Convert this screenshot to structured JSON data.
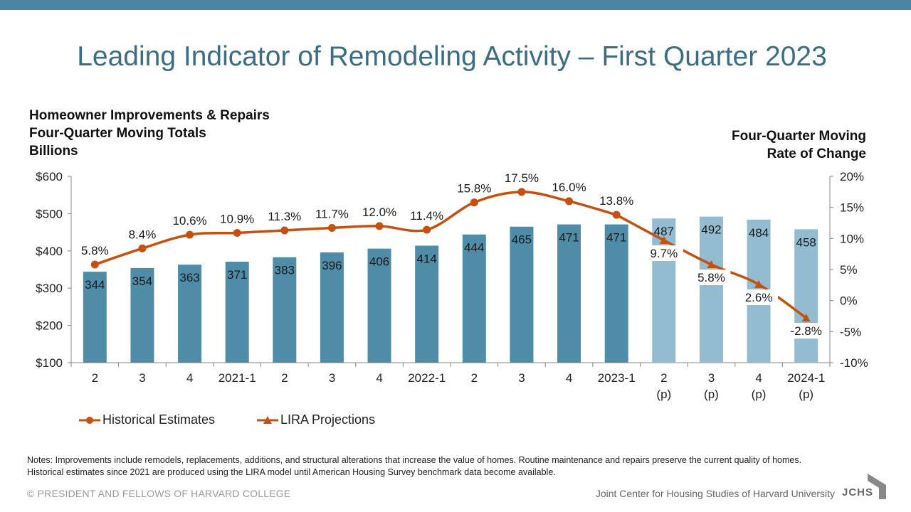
{
  "title": "Leading Indicator of Remodeling Activity – First Quarter 2023",
  "left_axis_title": [
    "Homeowner Improvements & Repairs",
    "Four-Quarter Moving Totals",
    "Billions"
  ],
  "right_axis_title": [
    "Four-Quarter Moving",
    "Rate of Change"
  ],
  "legend": {
    "historical": "Historical Estimates",
    "projections": "LIRA Projections"
  },
  "notes": "Notes: Improvements include remodels, replacements, additions, and structural alterations that increase the value of homes. Routine maintenance and repairs preserve the current quality of homes. Historical estimates since 2021 are produced using the LIRA model until American Housing Survey benchmark data become available.",
  "footer": {
    "copyright": "© PRESIDENT AND FELLOWS OF HARVARD COLLEGE",
    "org": "Joint Center for Housing Studies of Harvard University",
    "logo": "JCHS"
  },
  "colors": {
    "header_bar": "#4a86a3",
    "title": "#3a6e86",
    "bar_historical": "#4e8ca8",
    "bar_projected": "#94bcd0",
    "line": "#c5500f"
  },
  "chart_data": {
    "type": "bar",
    "categories": [
      [
        "2"
      ],
      [
        "3"
      ],
      [
        "4"
      ],
      [
        "2021-1"
      ],
      [
        "2"
      ],
      [
        "3"
      ],
      [
        "4"
      ],
      [
        "2022-1"
      ],
      [
        "2"
      ],
      [
        "3"
      ],
      [
        "4"
      ],
      [
        "2023-1"
      ],
      [
        "2",
        "(p)"
      ],
      [
        "3",
        "(p)"
      ],
      [
        "4",
        "(p)"
      ],
      [
        "2024-1",
        "(p)"
      ]
    ],
    "bars": {
      "values": [
        344,
        354,
        363,
        371,
        383,
        396,
        406,
        414,
        444,
        465,
        471,
        471,
        487,
        492,
        484,
        458
      ],
      "projected": [
        false,
        false,
        false,
        false,
        false,
        false,
        false,
        false,
        false,
        false,
        false,
        false,
        true,
        true,
        true,
        true
      ]
    },
    "series": [
      {
        "name": "Historical Estimates",
        "marker": "circle",
        "axis": "right",
        "values": [
          5.8,
          8.4,
          10.6,
          10.9,
          11.3,
          11.7,
          12.0,
          11.4,
          15.8,
          17.5,
          16.0,
          13.8,
          null,
          null,
          null,
          null
        ],
        "labels": [
          "5.8%",
          "8.4%",
          "10.6%",
          "10.9%",
          "11.3%",
          "11.7%",
          "12.0%",
          "11.4%",
          "15.8%",
          "17.5%",
          "16.0%",
          "13.8%",
          null,
          null,
          null,
          null
        ]
      },
      {
        "name": "LIRA Projections",
        "marker": "triangle",
        "axis": "right",
        "values": [
          null,
          null,
          null,
          null,
          null,
          null,
          null,
          null,
          null,
          null,
          null,
          13.8,
          9.7,
          5.8,
          2.6,
          -2.8
        ],
        "labels": [
          null,
          null,
          null,
          null,
          null,
          null,
          null,
          null,
          null,
          null,
          null,
          null,
          "9.7%",
          "5.8%",
          "2.6%",
          "-2.8%"
        ]
      }
    ],
    "y_left": {
      "ylim": [
        100,
        600
      ],
      "ticks": [
        100,
        200,
        300,
        400,
        500,
        600
      ],
      "tick_labels": [
        "$100",
        "$200",
        "$300",
        "$400",
        "$500",
        "$600"
      ]
    },
    "y_right": {
      "ylim": [
        -10,
        20
      ],
      "ticks": [
        -10,
        -5,
        0,
        5,
        10,
        15,
        20
      ],
      "tick_labels": [
        "-10%",
        "-5%",
        "0%",
        "5%",
        "10%",
        "15%",
        "20%"
      ]
    },
    "grid": false,
    "legend_position": "bottom-left"
  }
}
